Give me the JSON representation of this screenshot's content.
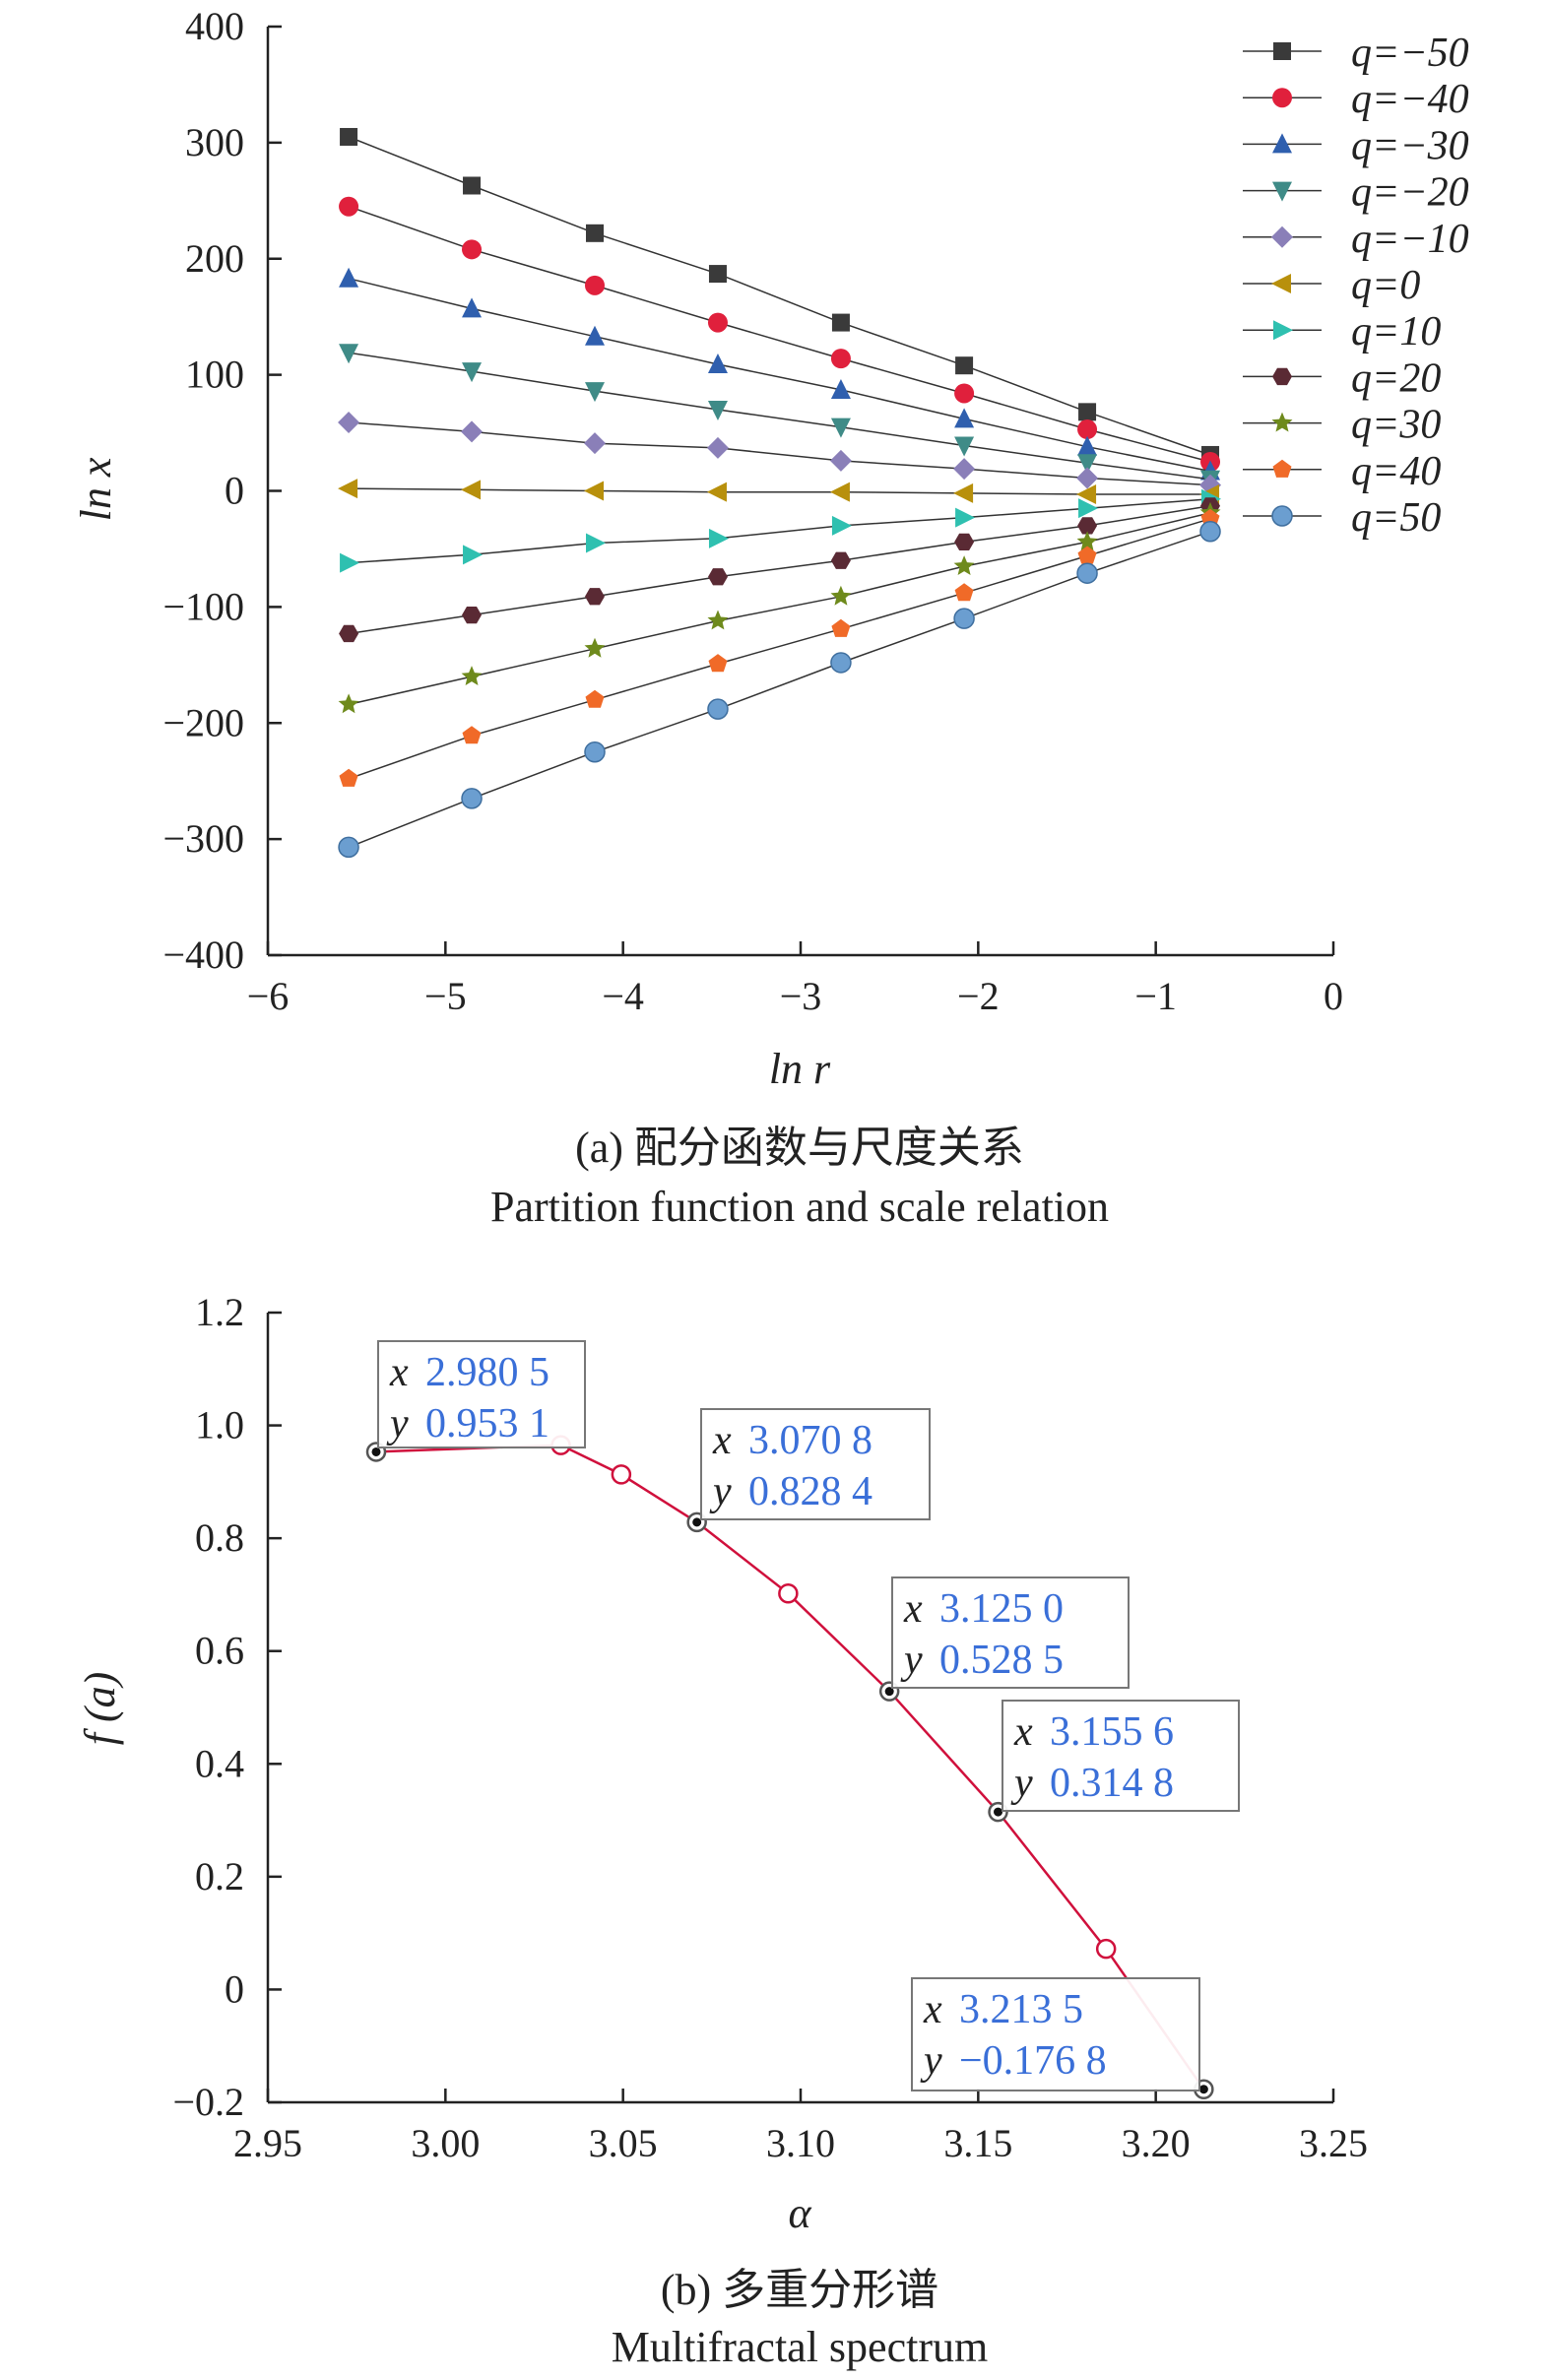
{
  "chart_data": [
    {
      "type": "line",
      "panel": "a",
      "caption_cn": "(a) 配分函数与尺度关系",
      "caption_en": "Partition function and scale relation",
      "xlabel": "ln r",
      "ylabel": "ln x",
      "xlim": [
        -6,
        0
      ],
      "ylim": [
        -400,
        400
      ],
      "xticks": [
        "−6",
        "−5",
        "−4",
        "−3",
        "−2",
        "−1",
        "0"
      ],
      "xtick_values": [
        -6,
        -5,
        -4,
        -3,
        -2,
        -1,
        0
      ],
      "yticks": [
        "400",
        "300",
        "200",
        "100",
        "0",
        "−100",
        "−200",
        "−300",
        "−400"
      ],
      "ytick_values": [
        400,
        300,
        200,
        100,
        0,
        -100,
        -200,
        -300,
        -400
      ],
      "grid": false,
      "legend_position": "top-right",
      "x": [
        -5.545,
        -4.852,
        -4.159,
        -3.466,
        -2.773,
        -2.079,
        -1.386,
        -0.693
      ],
      "series": [
        {
          "name": "q=−50",
          "marker": "square",
          "color": "#3a3a3a",
          "values": [
            305,
            263,
            222,
            187,
            145,
            108,
            68,
            31
          ]
        },
        {
          "name": "q=−40",
          "marker": "circle",
          "color": "#e0203c",
          "values": [
            245,
            208,
            177,
            145,
            114,
            84,
            53,
            25
          ]
        },
        {
          "name": "q=−30",
          "marker": "triangle-up",
          "color": "#2f5fae",
          "values": [
            183,
            157,
            133,
            109,
            87,
            62,
            38,
            17
          ]
        },
        {
          "name": "q=−20",
          "marker": "triangle-down",
          "color": "#3f8b87",
          "values": [
            119,
            103,
            86,
            70,
            55,
            39,
            24,
            10
          ]
        },
        {
          "name": "q=−10",
          "marker": "diamond",
          "color": "#8a7fb8",
          "values": [
            59,
            51,
            41,
            37,
            26,
            19,
            11,
            5
          ]
        },
        {
          "name": "q=0",
          "marker": "triangle-left",
          "color": "#b8900c",
          "values": [
            2,
            1,
            0,
            -1,
            -1,
            -2,
            -3,
            -3
          ]
        },
        {
          "name": "q=10",
          "marker": "triangle-right",
          "color": "#2fc0b0",
          "values": [
            -62,
            -55,
            -45,
            -41,
            -30,
            -23,
            -15,
            -7
          ]
        },
        {
          "name": "q=20",
          "marker": "hexagon",
          "color": "#5a2a34",
          "values": [
            -123,
            -107,
            -91,
            -74,
            -60,
            -44,
            -30,
            -13
          ]
        },
        {
          "name": "q=30",
          "marker": "star",
          "color": "#6e8a1c",
          "values": [
            -184,
            -160,
            -136,
            -112,
            -91,
            -65,
            -44,
            -19
          ]
        },
        {
          "name": "q=40",
          "marker": "pentagon",
          "color": "#f06a28",
          "values": [
            -248,
            -211,
            -180,
            -149,
            -119,
            -88,
            -56,
            -24
          ]
        },
        {
          "name": "q=50",
          "marker": "sphere",
          "color": "#6b9ed0",
          "values": [
            -307,
            -265,
            -225,
            -188,
            -148,
            -110,
            -71,
            -35
          ]
        }
      ]
    },
    {
      "type": "line",
      "panel": "b",
      "caption_cn": "(b) 多重分形谱",
      "caption_en": "Multifractal spectrum",
      "xlabel": "α",
      "ylabel": "f (a)",
      "xlim": [
        2.95,
        3.25
      ],
      "ylim": [
        -0.2,
        1.2
      ],
      "xticks": [
        "2.95",
        "3.00",
        "3.05",
        "3.10",
        "3.15",
        "3.20",
        "3.25"
      ],
      "xtick_values": [
        2.95,
        3.0,
        3.05,
        3.1,
        3.15,
        3.2,
        3.25
      ],
      "yticks": [
        "1.2",
        "1.0",
        "0.8",
        "0.6",
        "0.4",
        "0.2",
        "0",
        "−0.2"
      ],
      "ytick_values": [
        1.2,
        1.0,
        0.8,
        0.6,
        0.4,
        0.2,
        0,
        -0.2
      ],
      "grid": false,
      "line_color": "#d0103c",
      "x": [
        2.9805,
        3.0325,
        3.0495,
        3.0708,
        3.0965,
        3.125,
        3.1556,
        3.186,
        3.2135
      ],
      "y": [
        0.9531,
        0.965,
        0.913,
        0.8284,
        0.702,
        0.5285,
        0.3148,
        0.072,
        -0.1768
      ],
      "highlighted": [
        0,
        3,
        5,
        6,
        8
      ],
      "datatips": [
        {
          "x_label": "x",
          "y_label": "y",
          "x_text": "2.980 5",
          "y_text": "0.953 1"
        },
        {
          "x_label": "x",
          "y_label": "y",
          "x_text": "3.070 8",
          "y_text": "0.828 4"
        },
        {
          "x_label": "x",
          "y_label": "y",
          "x_text": "3.125 0",
          "y_text": "0.528 5"
        },
        {
          "x_label": "x",
          "y_label": "y",
          "x_text": "3.155 6",
          "y_text": "0.314 8"
        },
        {
          "x_label": "x",
          "y_label": "y",
          "x_text": "3.213 5",
          "y_text": "−0.176 8"
        }
      ]
    }
  ]
}
